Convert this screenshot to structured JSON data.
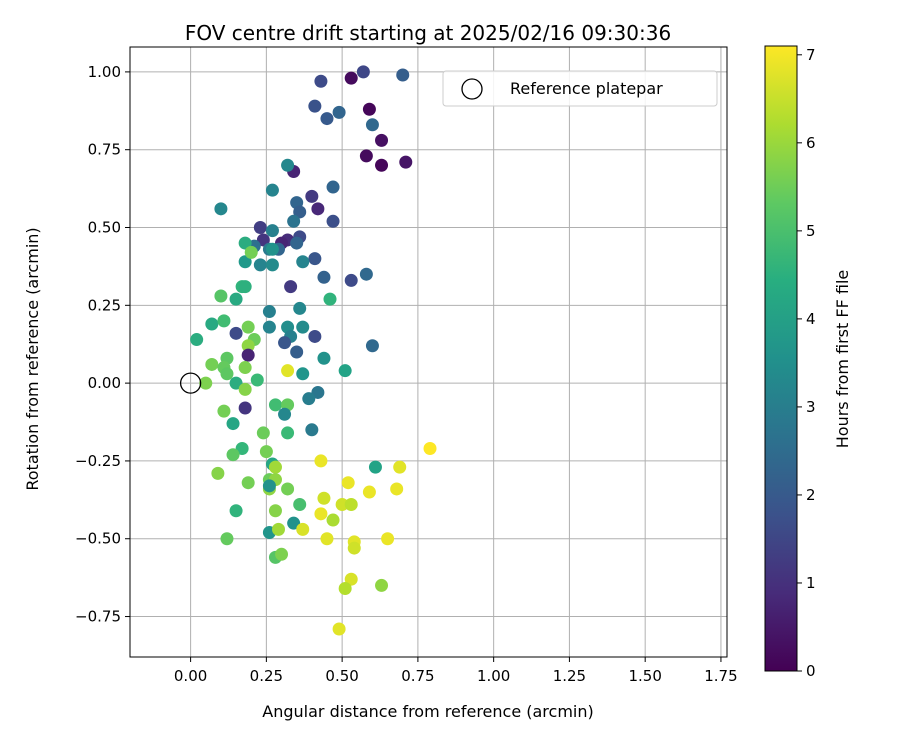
{
  "chart_data": {
    "type": "scatter",
    "title": "FOV centre drift starting at 2025/02/16 09:30:36",
    "xlabel": "Angular distance from reference (arcmin)",
    "ylabel": "Rotation from reference (arcmin)",
    "xlim": [
      -0.2,
      1.77
    ],
    "ylim": [
      -0.88,
      1.08
    ],
    "xticks": [
      0.0,
      0.25,
      0.5,
      0.75,
      1.0,
      1.25,
      1.5,
      1.75
    ],
    "yticks": [
      -0.75,
      -0.5,
      -0.25,
      0.0,
      0.25,
      0.5,
      0.75,
      1.0
    ],
    "xtick_labels": [
      "0.00",
      "0.25",
      "0.50",
      "0.75",
      "1.00",
      "1.25",
      "1.50",
      "1.75"
    ],
    "ytick_labels": [
      "−0.75",
      "−0.50",
      "−0.25",
      "0.00",
      "0.25",
      "0.50",
      "0.75",
      "1.00"
    ],
    "grid": true,
    "legend": {
      "placement": "top-right",
      "entries": [
        "Reference platepar"
      ]
    },
    "reference_point": {
      "name": "Reference platepar",
      "x": 0.0,
      "y": 0.0
    },
    "colorbar": {
      "label": "Hours from first FF file",
      "colormap": "viridis",
      "range": [
        0,
        7.1
      ],
      "ticks": [
        0,
        1,
        2,
        3,
        4,
        5,
        6,
        7
      ],
      "tick_labels": [
        "0",
        "1",
        "2",
        "3",
        "4",
        "5",
        "6",
        "7"
      ]
    },
    "points": [
      {
        "x": 0.53,
        "y": 0.98,
        "h": 0.2
      },
      {
        "x": 0.59,
        "y": 0.88,
        "h": 0.1
      },
      {
        "x": 0.63,
        "y": 0.78,
        "h": 0.3
      },
      {
        "x": 0.58,
        "y": 0.73,
        "h": 0.2
      },
      {
        "x": 0.63,
        "y": 0.7,
        "h": 0.1
      },
      {
        "x": 0.71,
        "y": 0.71,
        "h": 0.4
      },
      {
        "x": 0.57,
        "y": 1.0,
        "h": 1.5
      },
      {
        "x": 0.7,
        "y": 0.99,
        "h": 2.1
      },
      {
        "x": 0.43,
        "y": 0.97,
        "h": 1.6
      },
      {
        "x": 0.41,
        "y": 0.89,
        "h": 1.8
      },
      {
        "x": 0.49,
        "y": 0.87,
        "h": 2.3
      },
      {
        "x": 0.45,
        "y": 0.85,
        "h": 2.0
      },
      {
        "x": 0.6,
        "y": 0.83,
        "h": 2.4
      },
      {
        "x": 0.34,
        "y": 0.68,
        "h": 0.7
      },
      {
        "x": 0.47,
        "y": 0.63,
        "h": 2.3
      },
      {
        "x": 0.4,
        "y": 0.6,
        "h": 1.2
      },
      {
        "x": 0.35,
        "y": 0.58,
        "h": 2.3
      },
      {
        "x": 0.42,
        "y": 0.56,
        "h": 0.8
      },
      {
        "x": 0.36,
        "y": 0.55,
        "h": 2.1
      },
      {
        "x": 0.47,
        "y": 0.52,
        "h": 1.7
      },
      {
        "x": 0.34,
        "y": 0.52,
        "h": 2.7
      },
      {
        "x": 0.23,
        "y": 0.5,
        "h": 1.3
      },
      {
        "x": 0.36,
        "y": 0.47,
        "h": 1.6
      },
      {
        "x": 0.32,
        "y": 0.46,
        "h": 0.9
      },
      {
        "x": 0.24,
        "y": 0.46,
        "h": 1.1
      },
      {
        "x": 0.3,
        "y": 0.45,
        "h": 0.7
      },
      {
        "x": 0.35,
        "y": 0.45,
        "h": 2.3
      },
      {
        "x": 0.21,
        "y": 0.44,
        "h": 2.6
      },
      {
        "x": 0.26,
        "y": 0.43,
        "h": 2.9
      },
      {
        "x": 0.29,
        "y": 0.43,
        "h": 2.3
      },
      {
        "x": 0.27,
        "y": 0.43,
        "h": 3.6
      },
      {
        "x": 0.41,
        "y": 0.4,
        "h": 1.9
      },
      {
        "x": 0.37,
        "y": 0.39,
        "h": 3.2
      },
      {
        "x": 0.18,
        "y": 0.39,
        "h": 3.8
      },
      {
        "x": 0.23,
        "y": 0.38,
        "h": 3.2
      },
      {
        "x": 0.58,
        "y": 0.35,
        "h": 2.4
      },
      {
        "x": 0.44,
        "y": 0.34,
        "h": 2.2
      },
      {
        "x": 0.53,
        "y": 0.33,
        "h": 1.6
      },
      {
        "x": 0.33,
        "y": 0.31,
        "h": 1.2
      },
      {
        "x": 0.17,
        "y": 0.31,
        "h": 4.6
      },
      {
        "x": 0.18,
        "y": 0.31,
        "h": 4.5
      },
      {
        "x": 0.46,
        "y": 0.27,
        "h": 4.6
      },
      {
        "x": 0.15,
        "y": 0.27,
        "h": 4.3
      },
      {
        "x": 0.1,
        "y": 0.28,
        "h": 5.2
      },
      {
        "x": 0.36,
        "y": 0.24,
        "h": 3.3
      },
      {
        "x": 0.26,
        "y": 0.23,
        "h": 3.1
      },
      {
        "x": 0.07,
        "y": 0.19,
        "h": 4.3
      },
      {
        "x": 0.11,
        "y": 0.2,
        "h": 4.9
      },
      {
        "x": 0.19,
        "y": 0.18,
        "h": 5.6
      },
      {
        "x": 0.26,
        "y": 0.18,
        "h": 3.2
      },
      {
        "x": 0.32,
        "y": 0.18,
        "h": 3.5
      },
      {
        "x": 0.37,
        "y": 0.18,
        "h": 3.4
      },
      {
        "x": 0.15,
        "y": 0.16,
        "h": 1.6
      },
      {
        "x": 0.33,
        "y": 0.15,
        "h": 3.1
      },
      {
        "x": 0.41,
        "y": 0.15,
        "h": 1.6
      },
      {
        "x": 0.02,
        "y": 0.14,
        "h": 4.4
      },
      {
        "x": 0.21,
        "y": 0.14,
        "h": 5.5
      },
      {
        "x": 0.31,
        "y": 0.13,
        "h": 1.9
      },
      {
        "x": 0.6,
        "y": 0.12,
        "h": 2.4
      },
      {
        "x": 0.19,
        "y": 0.12,
        "h": 5.9
      },
      {
        "x": 0.35,
        "y": 0.1,
        "h": 2.1
      },
      {
        "x": 0.19,
        "y": 0.09,
        "h": 0.7
      },
      {
        "x": 0.44,
        "y": 0.08,
        "h": 3.6
      },
      {
        "x": 0.12,
        "y": 0.08,
        "h": 5.3
      },
      {
        "x": 0.07,
        "y": 0.06,
        "h": 5.6
      },
      {
        "x": 0.11,
        "y": 0.05,
        "h": 5.4
      },
      {
        "x": 0.18,
        "y": 0.05,
        "h": 5.7
      },
      {
        "x": 0.32,
        "y": 0.04,
        "h": 6.8
      },
      {
        "x": 0.51,
        "y": 0.04,
        "h": 4.1
      },
      {
        "x": 0.12,
        "y": 0.03,
        "h": 5.3
      },
      {
        "x": 0.37,
        "y": 0.03,
        "h": 3.7
      },
      {
        "x": 0.22,
        "y": 0.01,
        "h": 4.8
      },
      {
        "x": 0.05,
        "y": 0.0,
        "h": 5.7
      },
      {
        "x": 0.15,
        "y": 0.0,
        "h": 4.4
      },
      {
        "x": 0.18,
        "y": -0.02,
        "h": 5.8
      },
      {
        "x": 0.42,
        "y": -0.03,
        "h": 2.8
      },
      {
        "x": 0.39,
        "y": -0.05,
        "h": 3.0
      },
      {
        "x": 0.28,
        "y": -0.07,
        "h": 4.9
      },
      {
        "x": 0.32,
        "y": -0.07,
        "h": 5.4
      },
      {
        "x": 0.11,
        "y": -0.09,
        "h": 5.6
      },
      {
        "x": 0.18,
        "y": -0.08,
        "h": 1.1
      },
      {
        "x": 0.31,
        "y": -0.1,
        "h": 3.3
      },
      {
        "x": 0.14,
        "y": -0.13,
        "h": 4.2
      },
      {
        "x": 0.24,
        "y": -0.16,
        "h": 5.5
      },
      {
        "x": 0.32,
        "y": -0.16,
        "h": 4.8
      },
      {
        "x": 0.4,
        "y": -0.15,
        "h": 2.9
      },
      {
        "x": 0.17,
        "y": -0.21,
        "h": 4.7
      },
      {
        "x": 0.14,
        "y": -0.23,
        "h": 5.3
      },
      {
        "x": 0.25,
        "y": -0.22,
        "h": 5.6
      },
      {
        "x": 0.43,
        "y": -0.25,
        "h": 6.9
      },
      {
        "x": 0.27,
        "y": -0.26,
        "h": 4.2
      },
      {
        "x": 0.28,
        "y": -0.27,
        "h": 6.1
      },
      {
        "x": 0.61,
        "y": -0.27,
        "h": 4.1
      },
      {
        "x": 0.69,
        "y": -0.27,
        "h": 6.8
      },
      {
        "x": 0.79,
        "y": -0.21,
        "h": 7.1
      },
      {
        "x": 0.09,
        "y": -0.29,
        "h": 5.8
      },
      {
        "x": 0.26,
        "y": -0.31,
        "h": 5.5
      },
      {
        "x": 0.28,
        "y": -0.31,
        "h": 5.9
      },
      {
        "x": 0.19,
        "y": -0.32,
        "h": 5.6
      },
      {
        "x": 0.52,
        "y": -0.32,
        "h": 6.9
      },
      {
        "x": 0.26,
        "y": -0.34,
        "h": 5.9
      },
      {
        "x": 0.26,
        "y": -0.33,
        "h": 3.6
      },
      {
        "x": 0.32,
        "y": -0.34,
        "h": 5.6
      },
      {
        "x": 0.68,
        "y": -0.34,
        "h": 6.9
      },
      {
        "x": 0.59,
        "y": -0.35,
        "h": 6.9
      },
      {
        "x": 0.44,
        "y": -0.37,
        "h": 6.6
      },
      {
        "x": 0.36,
        "y": -0.39,
        "h": 5.0
      },
      {
        "x": 0.5,
        "y": -0.39,
        "h": 6.6
      },
      {
        "x": 0.53,
        "y": -0.39,
        "h": 6.4
      },
      {
        "x": 0.15,
        "y": -0.41,
        "h": 4.6
      },
      {
        "x": 0.28,
        "y": -0.41,
        "h": 5.8
      },
      {
        "x": 0.43,
        "y": -0.42,
        "h": 6.9
      },
      {
        "x": 0.47,
        "y": -0.44,
        "h": 6.2
      },
      {
        "x": 0.34,
        "y": -0.45,
        "h": 3.6
      },
      {
        "x": 0.26,
        "y": -0.48,
        "h": 3.7
      },
      {
        "x": 0.29,
        "y": -0.47,
        "h": 6.1
      },
      {
        "x": 0.37,
        "y": -0.47,
        "h": 6.7
      },
      {
        "x": 0.12,
        "y": -0.5,
        "h": 5.4
      },
      {
        "x": 0.45,
        "y": -0.5,
        "h": 6.8
      },
      {
        "x": 0.54,
        "y": -0.51,
        "h": 6.8
      },
      {
        "x": 0.65,
        "y": -0.5,
        "h": 6.9
      },
      {
        "x": 0.54,
        "y": -0.53,
        "h": 6.6
      },
      {
        "x": 0.28,
        "y": -0.56,
        "h": 5.2
      },
      {
        "x": 0.3,
        "y": -0.55,
        "h": 5.7
      },
      {
        "x": 0.53,
        "y": -0.63,
        "h": 6.7
      },
      {
        "x": 0.63,
        "y": -0.65,
        "h": 5.9
      },
      {
        "x": 0.51,
        "y": -0.66,
        "h": 6.3
      },
      {
        "x": 0.49,
        "y": -0.79,
        "h": 6.8
      },
      {
        "x": 0.1,
        "y": 0.56,
        "h": 3.3
      },
      {
        "x": 0.32,
        "y": 0.7,
        "h": 3.3
      },
      {
        "x": 0.27,
        "y": 0.62,
        "h": 3.2
      },
      {
        "x": 0.18,
        "y": 0.45,
        "h": 4.4
      },
      {
        "x": 0.2,
        "y": 0.42,
        "h": 5.6
      },
      {
        "x": 0.27,
        "y": 0.49,
        "h": 3.1
      },
      {
        "x": 0.27,
        "y": 0.38,
        "h": 3.4
      }
    ]
  }
}
